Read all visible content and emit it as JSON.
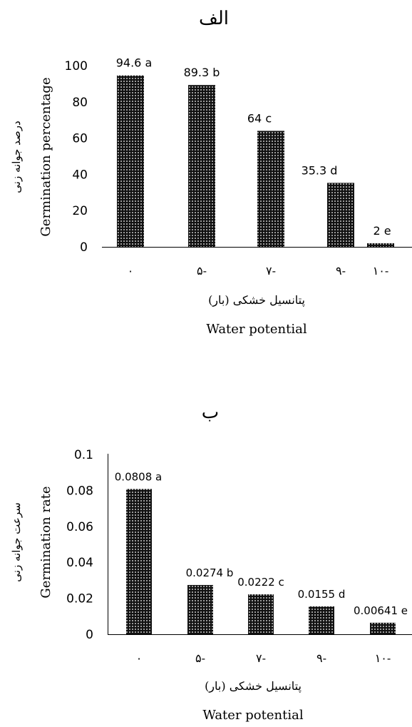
{
  "chart_data": [
    {
      "type": "bar",
      "title": "الف",
      "categories": [
        "۰",
        "۵-",
        "۷-",
        "۹-",
        "۱۰-"
      ],
      "values": [
        94.6,
        89.3,
        64,
        35.3,
        2
      ],
      "data_labels": [
        "94.6 a",
        "89.3 b",
        "64 c",
        "35.3 d",
        "2 e"
      ],
      "ylabel_fa": "درصد جوانه زنی",
      "ylabel": "Germination percentage",
      "xlabel_fa": "پتانسیل خشکی (بار)",
      "xlabel": "Water potential",
      "ylim": [
        0,
        100
      ],
      "yticks": [
        "0",
        "20",
        "40",
        "60",
        "80",
        "100"
      ],
      "grid": false,
      "bar_fill": "dotted black"
    },
    {
      "type": "bar",
      "title": "ب",
      "categories": [
        "۰",
        "۵-",
        "۷-",
        "۹-",
        "۱۰-"
      ],
      "values": [
        0.0808,
        0.0274,
        0.0222,
        0.0155,
        0.00641
      ],
      "data_labels": [
        "0.0808 a",
        "0.0274 b",
        "0.0222 c",
        "0.0155 d",
        "0.00641 e"
      ],
      "ylabel_fa": "سرعت جوانه زنی",
      "ylabel": "Germination rate",
      "xlabel_fa": "پتانسیل خشکی (بار)",
      "xlabel": "Water potential",
      "ylim": [
        0,
        0.1
      ],
      "yticks": [
        "0",
        "0.02",
        "0.04",
        "0.06",
        "0.08",
        "0.1"
      ],
      "grid": false,
      "bar_fill": "dotted black"
    }
  ]
}
